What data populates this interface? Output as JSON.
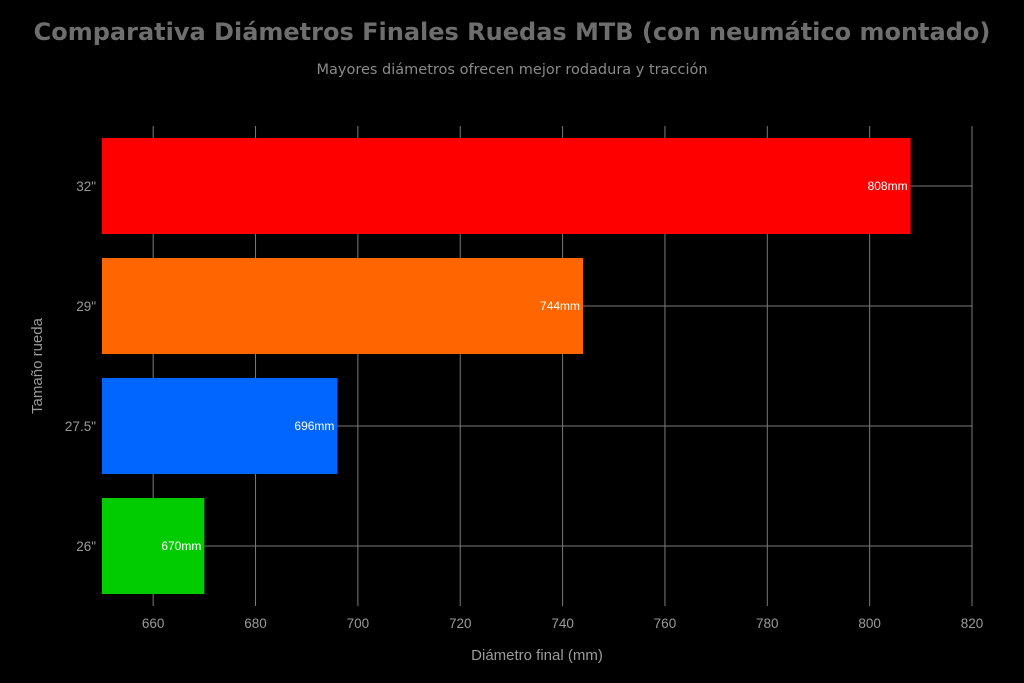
{
  "title": "Comparativa Diámetros Finales Ruedas MTB (con neumático montado)",
  "subtitle": "Mayores diámetros ofrecen mejor rodadura y tracción",
  "chart_data": {
    "type": "bar",
    "orientation": "horizontal",
    "categories": [
      "26\"",
      "27.5\"",
      "29\"",
      "32\""
    ],
    "values": [
      670,
      696,
      744,
      808
    ],
    "data_labels": [
      "670mm",
      "696mm",
      "744mm",
      "808mm"
    ],
    "colors": [
      "#00cc00",
      "#0066ff",
      "#ff6600",
      "#ff0000"
    ],
    "xlabel": "Diámetro final (mm)",
    "ylabel": "Tamaño rueda",
    "xlim": [
      650,
      820
    ],
    "xticks": [
      660,
      680,
      700,
      720,
      740,
      760,
      780,
      800,
      820
    ],
    "grid": true,
    "legend": "none"
  }
}
